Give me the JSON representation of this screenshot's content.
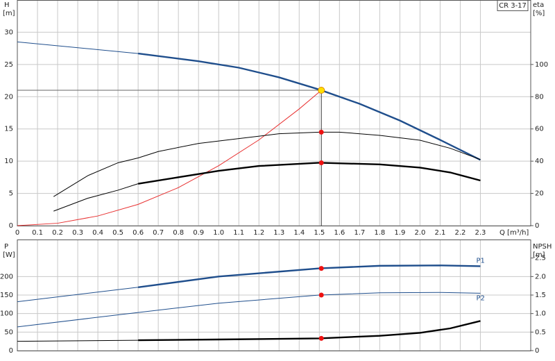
{
  "chart_data": [
    {
      "type": "line",
      "title": "CR 3-17",
      "ylabel": "H",
      "yunit": "[m]",
      "y2label": "eta",
      "y2unit": "[%]",
      "xlabel": "Q [m³/h]",
      "xlim": [
        0,
        2.55
      ],
      "ylim": [
        0,
        35
      ],
      "y2lim": [
        0,
        140
      ],
      "xticks": [
        0,
        0.1,
        0.2,
        0.3,
        0.4,
        0.5,
        0.6,
        0.7,
        0.8,
        0.9,
        {
          "value": 1.0,
          "label": "1.0"
        },
        1.1,
        1.2,
        1.3,
        1.4,
        1.5,
        1.6,
        1.7,
        1.8,
        1.9,
        {
          "value": 2.0,
          "label": "2.0"
        },
        2.1,
        2.2,
        2.3
      ],
      "yticks": [
        0,
        5,
        10,
        15,
        20,
        25,
        30
      ],
      "y2ticks": [
        0,
        20,
        40,
        60,
        80,
        100
      ],
      "grid": true,
      "duty_point": {
        "x": 1.51,
        "y": 21
      },
      "series": [
        {
          "color": "#1f4e8c",
          "axis": "y",
          "bold_from": 0.6,
          "x": [
            0,
            0.6,
            0.9,
            1.1,
            1.3,
            1.5,
            1.7,
            1.9,
            2.1,
            2.3
          ],
          "values": [
            28.5,
            26.7,
            25.5,
            24.5,
            23,
            21.1,
            18.9,
            16.3,
            13.3,
            10.2
          ]
        },
        {
          "color": "#e83030",
          "axis": "y",
          "x": [
            0,
            0.2,
            0.4,
            0.6,
            0.8,
            1.0,
            1.2,
            1.4,
            1.51
          ],
          "values": [
            0,
            0.37,
            1.5,
            3.3,
            5.9,
            9.3,
            13.3,
            18.1,
            21
          ]
        },
        {
          "color": "#000000",
          "axis": "y2",
          "point": 58,
          "x": [
            0.18,
            0.35,
            0.5,
            0.6,
            0.7,
            0.9,
            1.1,
            1.3,
            1.5,
            1.6,
            1.8,
            2.0,
            2.15,
            2.3
          ],
          "values": [
            18,
            31,
            39,
            42,
            46,
            51,
            54,
            57,
            58,
            58,
            56,
            53,
            48,
            41
          ]
        },
        {
          "color": "#000000",
          "axis": "y2",
          "bold_from": 0.6,
          "point": 39,
          "x": [
            0.18,
            0.35,
            0.5,
            0.6,
            0.8,
            1.0,
            1.2,
            1.5,
            1.8,
            2.0,
            2.15,
            2.3
          ],
          "values": [
            9,
            17,
            22,
            26,
            30,
            34,
            37,
            39,
            38,
            36,
            33,
            28
          ]
        }
      ]
    },
    {
      "type": "line",
      "ylabel": "P",
      "yunit": "[W]",
      "y2label": "NPSH",
      "y2unit": "[m]",
      "xlim": [
        0,
        2.55
      ],
      "ylim": [
        0,
        300
      ],
      "y2lim": [
        0,
        3
      ],
      "yticks": [
        0,
        50,
        100,
        150,
        200
      ],
      "y2ticks": [
        0,
        0.5,
        {
          "value": 1.0,
          "label": "1.0"
        },
        1.5,
        {
          "value": 2.0,
          "label": "2.0"
        },
        2.5
      ],
      "grid": true,
      "point_x": 1.51,
      "series": [
        {
          "name": "P1",
          "color": "#1f4e8c",
          "axis": "y",
          "bold_from": 0.6,
          "point": 222,
          "x": [
            0,
            0.6,
            1.0,
            1.5,
            1.8,
            2.1,
            2.3
          ],
          "values": [
            132,
            171,
            200,
            222,
            229,
            230,
            228
          ]
        },
        {
          "name": "P2",
          "color": "#1f4e8c",
          "axis": "y",
          "point": 150,
          "x": [
            0,
            0.6,
            1.0,
            1.5,
            1.8,
            2.1,
            2.3
          ],
          "values": [
            64,
            103,
            128,
            150,
            156,
            157,
            155
          ]
        },
        {
          "color": "#000000",
          "axis": "y2",
          "bold_from": 0.6,
          "point": 0.33,
          "x": [
            0,
            0.6,
            1.0,
            1.5,
            1.8,
            2.0,
            2.15,
            2.3
          ],
          "values": [
            0.25,
            0.28,
            0.3,
            0.33,
            0.4,
            0.48,
            0.6,
            0.8
          ]
        }
      ]
    }
  ]
}
